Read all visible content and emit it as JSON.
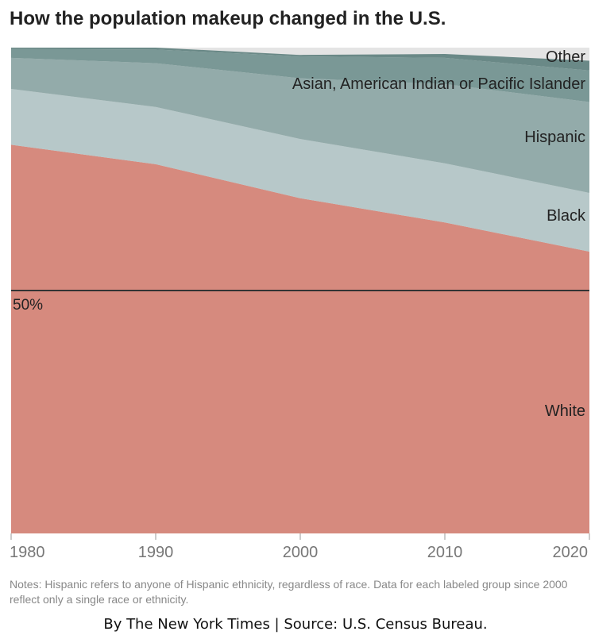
{
  "title": "How the population makeup changed in the U.S.",
  "notes": "Notes: Hispanic refers to anyone of Hispanic ethnicity, regardless of race. Data for each labeled group since 2000 reflect only a single race or ethnicity.",
  "credit": "By The New York Times | Source: U.S. Census Bureau.",
  "chart_data": {
    "type": "area",
    "stacked": true,
    "x": [
      1980,
      1990,
      2000,
      2010,
      2020
    ],
    "x_ticks": [
      "1980",
      "1990",
      "2000",
      "2010",
      "2020"
    ],
    "ylim": [
      0,
      100
    ],
    "reference_line": {
      "value": 50,
      "label": "50%"
    },
    "series": [
      {
        "name": "White",
        "values": [
          80,
          76,
          69,
          64,
          58
        ],
        "color": "#d68a7e"
      },
      {
        "name": "Black",
        "values": [
          11.5,
          11.8,
          12.2,
          12.2,
          12.1
        ],
        "color": "#b7c8c9"
      },
      {
        "name": "Hispanic",
        "values": [
          6.4,
          9,
          12.5,
          16.3,
          18.7
        ],
        "color": "#93abaa"
      },
      {
        "name": "Asian, American Indian or Pacific Islander",
        "values": [
          1.8,
          2.8,
          4.5,
          5.4,
          6.5
        ],
        "color": "#7a9896"
      },
      {
        "name": "Other",
        "values": [
          0.3,
          0.4,
          0.3,
          0.8,
          2.0
        ],
        "color": "#6a8987"
      }
    ]
  }
}
